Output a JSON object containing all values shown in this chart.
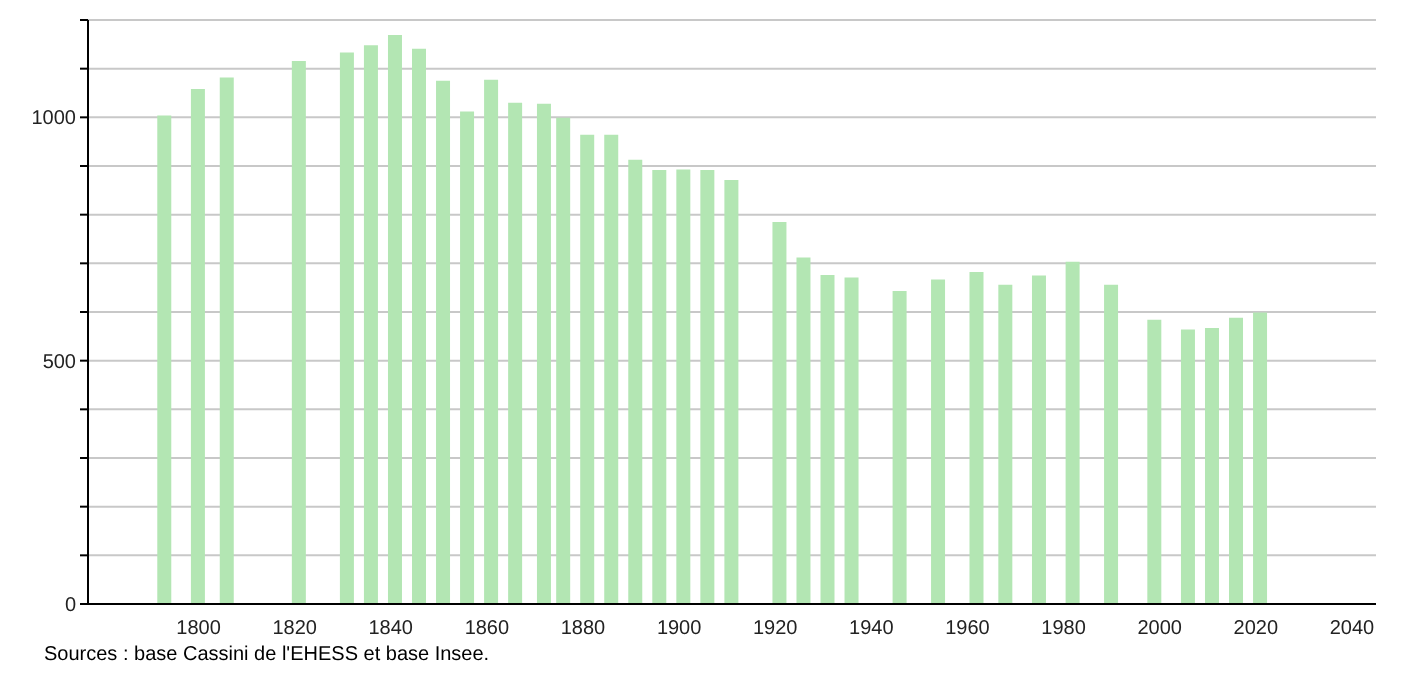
{
  "chart_data": {
    "type": "bar",
    "x": [
      1793,
      1800,
      1806,
      1821,
      1831,
      1836,
      1841,
      1846,
      1851,
      1856,
      1861,
      1866,
      1872,
      1876,
      1881,
      1886,
      1891,
      1896,
      1901,
      1906,
      1911,
      1921,
      1926,
      1931,
      1936,
      1946,
      1954,
      1962,
      1968,
      1975,
      1982,
      1990,
      1999,
      2006,
      2011,
      2016,
      2021
    ],
    "values": [
      1004,
      1058,
      1082,
      1116,
      1133,
      1148,
      1169,
      1141,
      1075,
      1012,
      1077,
      1030,
      1028,
      999,
      964,
      964,
      913,
      892,
      893,
      892,
      871,
      785,
      712,
      676,
      671,
      643,
      667,
      682,
      656,
      675,
      703,
      656,
      584,
      564,
      567,
      588,
      599
    ],
    "color": "#b3e6b3",
    "xlim": [
      1777,
      2045
    ],
    "xticks": [
      1800,
      1820,
      1840,
      1860,
      1880,
      1900,
      1920,
      1940,
      1960,
      1980,
      2000,
      2020,
      2040
    ],
    "ylim": [
      0,
      1200
    ],
    "yticks": [
      0,
      {
        "value": 100,
        "label": null
      },
      {
        "value": 200,
        "label": null
      },
      {
        "value": 300,
        "label": null
      },
      {
        "value": 400,
        "label": null
      },
      500,
      {
        "value": 600,
        "label": null
      },
      {
        "value": 700,
        "label": null
      },
      {
        "value": 800,
        "label": null
      },
      {
        "value": 900,
        "label": null
      },
      1000,
      {
        "value": 1100,
        "label": null
      },
      {
        "value": 1200,
        "label": null
      }
    ],
    "grid": "y",
    "annotations": [
      "Sources : base Cassini de l'EHESS et base Insee."
    ]
  }
}
